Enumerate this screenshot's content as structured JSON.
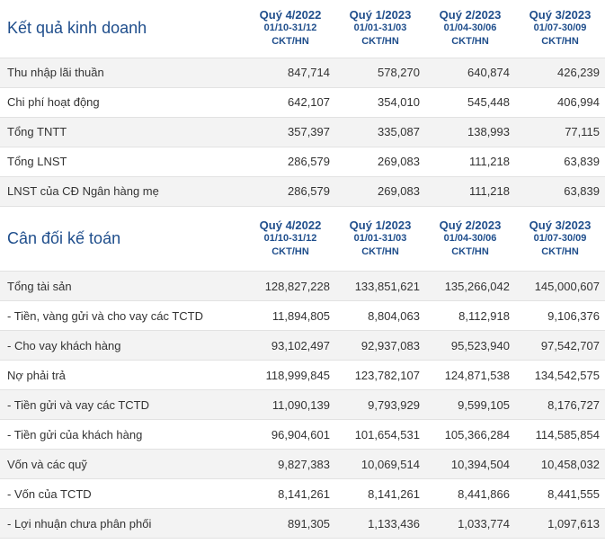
{
  "periods": [
    {
      "name": "Quý 4/2022",
      "range": "01/10-31/12",
      "unit": "CKT/HN"
    },
    {
      "name": "Quý 1/2023",
      "range": "01/01-31/03",
      "unit": "CKT/HN"
    },
    {
      "name": "Quý 2/2023",
      "range": "01/04-30/06",
      "unit": "CKT/HN"
    },
    {
      "name": "Quý 3/2023",
      "range": "01/07-30/09",
      "unit": "CKT/HN"
    }
  ],
  "income": {
    "title": "Kết quả kinh doanh",
    "rows": [
      {
        "label": "Thu nhập lãi thuần",
        "values": [
          "847,714",
          "578,270",
          "640,874",
          "426,239"
        ]
      },
      {
        "label": "Chi phí hoạt động",
        "values": [
          "642,107",
          "354,010",
          "545,448",
          "406,994"
        ]
      },
      {
        "label": "Tổng TNTT",
        "values": [
          "357,397",
          "335,087",
          "138,993",
          "77,115"
        ]
      },
      {
        "label": "Tổng LNST",
        "values": [
          "286,579",
          "269,083",
          "111,218",
          "63,839"
        ]
      },
      {
        "label": "LNST của CĐ Ngân hàng mẹ",
        "values": [
          "286,579",
          "269,083",
          "111,218",
          "63,839"
        ]
      }
    ]
  },
  "balance": {
    "title": "Cân đối kế toán",
    "rows": [
      {
        "label": "Tổng tài sản",
        "values": [
          "128,827,228",
          "133,851,621",
          "135,266,042",
          "145,000,607"
        ]
      },
      {
        "label": "- Tiền, vàng gửi và cho vay các TCTD",
        "values": [
          "11,894,805",
          "8,804,063",
          "8,112,918",
          "9,106,376"
        ]
      },
      {
        "label": "- Cho vay khách hàng",
        "values": [
          "93,102,497",
          "92,937,083",
          "95,523,940",
          "97,542,707"
        ]
      },
      {
        "label": "Nợ phải trả",
        "values": [
          "118,999,845",
          "123,782,107",
          "124,871,538",
          "134,542,575"
        ]
      },
      {
        "label": "- Tiền gửi và vay các TCTD",
        "values": [
          "11,090,139",
          "9,793,929",
          "9,599,105",
          "8,176,727"
        ]
      },
      {
        "label": "- Tiền gửi của khách hàng",
        "values": [
          "96,904,601",
          "101,654,531",
          "105,366,284",
          "114,585,854"
        ]
      },
      {
        "label": "Vốn và các quỹ",
        "values": [
          "9,827,383",
          "10,069,514",
          "10,394,504",
          "10,458,032"
        ]
      },
      {
        "label": "- Vốn của TCTD",
        "values": [
          "8,141,261",
          "8,141,261",
          "8,441,866",
          "8,441,555"
        ]
      },
      {
        "label": "- Lợi nhuận chưa phân phối",
        "values": [
          "891,305",
          "1,133,436",
          "1,033,774",
          "1,097,613"
        ]
      }
    ]
  }
}
